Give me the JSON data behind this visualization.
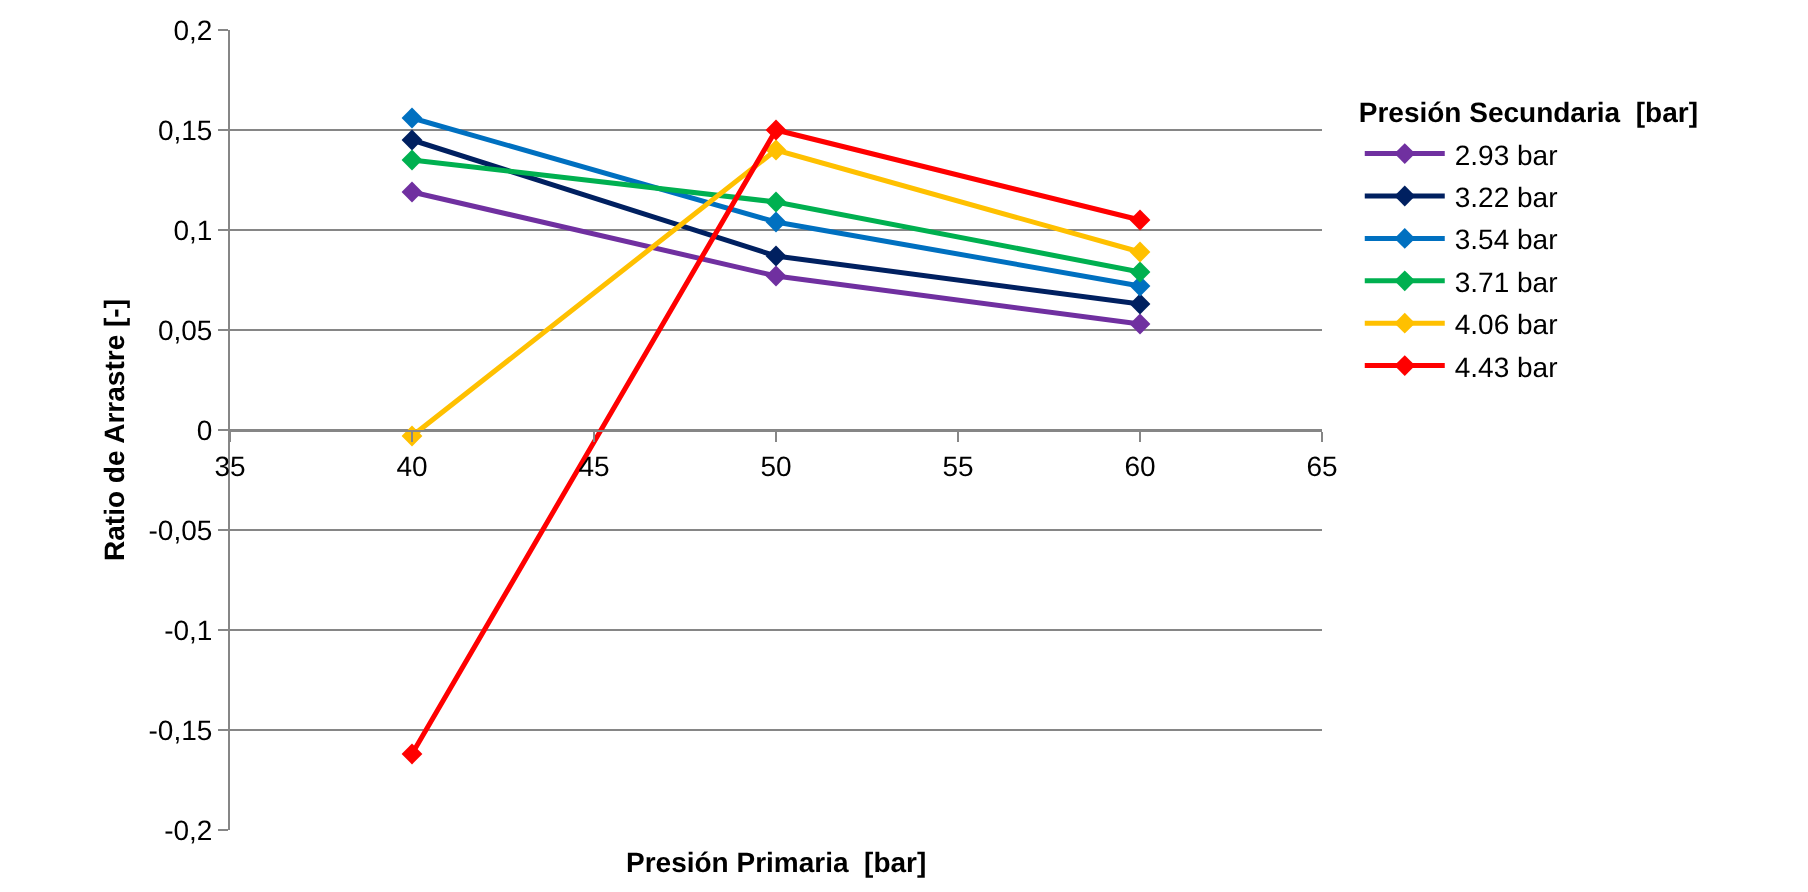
{
  "chart_data": {
    "type": "line",
    "xlabel": "Presión Primaria  [bar]",
    "ylabel": "Ratio de Arrastre [-]",
    "legend_title": "Presión Secundaria  [bar]",
    "x": [
      40,
      50,
      60
    ],
    "series": [
      {
        "name": "2.93 bar",
        "color": "#7030a0",
        "values": [
          0.119,
          0.077,
          0.053
        ]
      },
      {
        "name": "3.22 bar",
        "color": "#002060",
        "values": [
          0.145,
          0.087,
          0.063
        ]
      },
      {
        "name": "3.54 bar",
        "color": "#0070c0",
        "values": [
          0.156,
          0.104,
          0.072
        ]
      },
      {
        "name": "3.71 bar",
        "color": "#00b050",
        "values": [
          0.135,
          0.114,
          0.079
        ]
      },
      {
        "name": "4.06 bar",
        "color": "#ffc000",
        "values": [
          -0.003,
          0.14,
          0.089
        ]
      },
      {
        "name": "4.43 bar",
        "color": "#ff0000",
        "values": [
          -0.162,
          0.15,
          0.105
        ]
      }
    ],
    "xlim": [
      35,
      65
    ],
    "xticks": [
      35,
      40,
      45,
      50,
      55,
      60,
      65
    ],
    "ylim": [
      -0.2,
      0.2
    ],
    "yticks": [
      {
        "value": -0.2,
        "label": "-0,2"
      },
      {
        "value": -0.15,
        "label": "-0,15"
      },
      {
        "value": -0.1,
        "label": "-0,1"
      },
      {
        "value": -0.05,
        "label": "-0,05"
      },
      {
        "value": 0,
        "label": "0"
      },
      {
        "value": 0.05,
        "label": "0,05"
      },
      {
        "value": 0.1,
        "label": "0,1"
      },
      {
        "value": 0.15,
        "label": "0,15"
      },
      {
        "value": 0.2,
        "label": "0,2"
      }
    ],
    "grid": "y",
    "legend": "right",
    "marker": "diamond",
    "line_style": "solid"
  }
}
